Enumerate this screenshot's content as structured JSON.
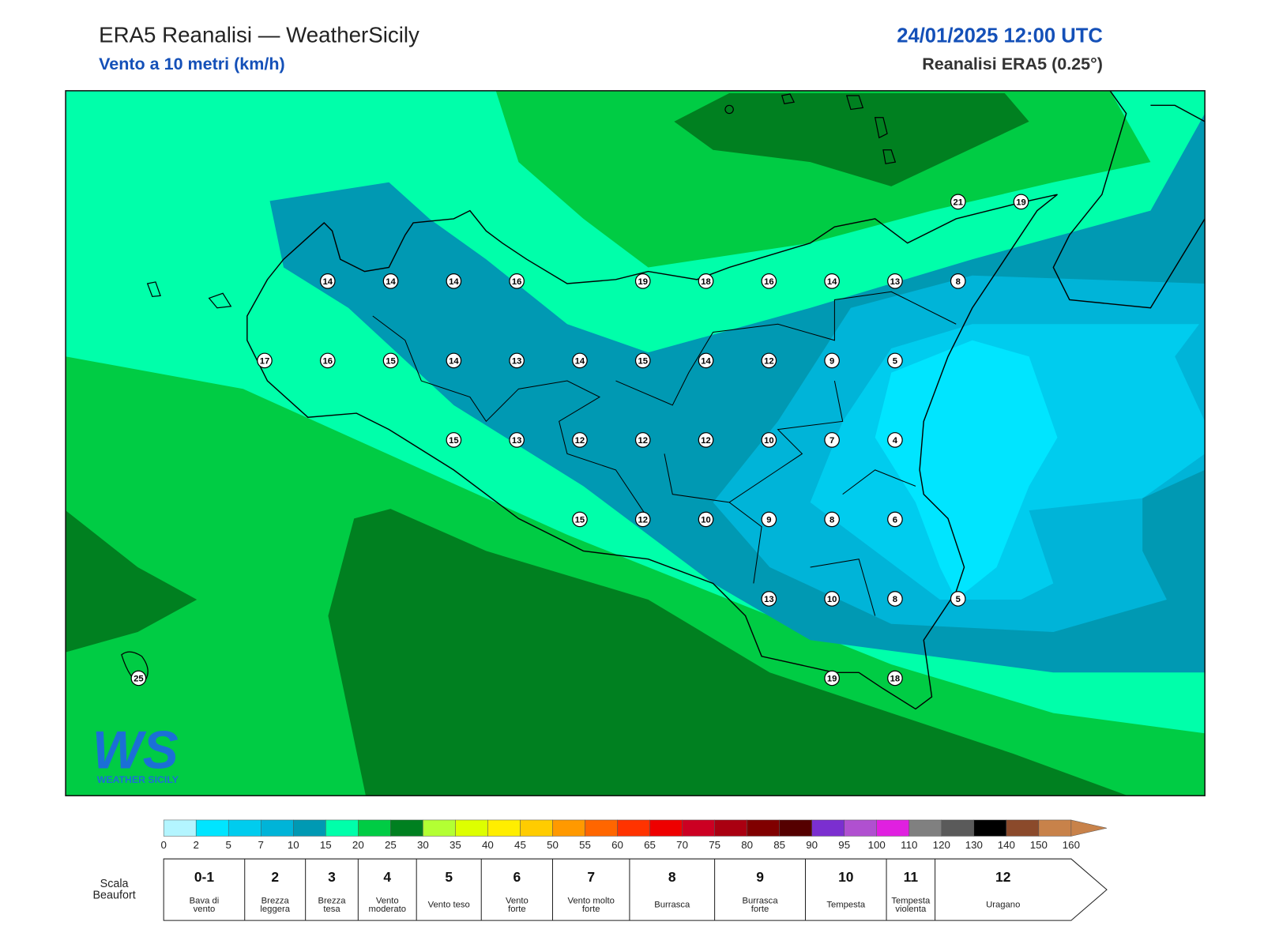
{
  "header": {
    "title": "ERA5 Reanalisi — WeatherSicily",
    "subtitle": "Vento a 10 metri (km/h)",
    "datetime": "24/01/2025 12:00 UTC",
    "source": "Reanalisi ERA5 (0.25°)"
  },
  "stations": [
    [
      null,
      null,
      null,
      null,
      null,
      null,
      null,
      null,
      null,
      null,
      null,
      null,
      null,
      21,
      19
    ],
    [
      null,
      null,
      null,
      14,
      14,
      14,
      16,
      null,
      19,
      18,
      16,
      14,
      13,
      8,
      null
    ],
    [
      null,
      null,
      17,
      16,
      15,
      14,
      13,
      14,
      15,
      14,
      12,
      9,
      5,
      null,
      null
    ],
    [
      null,
      null,
      null,
      null,
      null,
      15,
      13,
      12,
      12,
      12,
      10,
      7,
      4,
      null,
      null
    ],
    [
      null,
      null,
      null,
      null,
      null,
      null,
      null,
      15,
      12,
      10,
      9,
      8,
      6,
      null,
      null
    ],
    [
      null,
      null,
      null,
      null,
      null,
      null,
      null,
      null,
      null,
      null,
      13,
      10,
      8,
      5,
      null
    ],
    [
      25,
      null,
      null,
      null,
      null,
      null,
      null,
      null,
      null,
      null,
      null,
      19,
      18,
      null,
      null
    ]
  ],
  "logo": {
    "mark": "WS",
    "name": "WEATHER SICILY"
  },
  "colorbar": {
    "ticks": [
      0,
      2,
      5,
      7,
      10,
      15,
      20,
      25,
      30,
      35,
      40,
      45,
      50,
      55,
      60,
      65,
      70,
      75,
      80,
      85,
      90,
      95,
      100,
      110,
      120,
      130,
      140,
      150,
      160
    ],
    "colors": [
      "#b3f5ff",
      "#00e5ff",
      "#00ccee",
      "#00b4d8",
      "#0099b3",
      "#00ffaa",
      "#00cc44",
      "#008020",
      "#b3ff33",
      "#ddff00",
      "#ffee00",
      "#ffcc00",
      "#ff9900",
      "#ff6600",
      "#ff3300",
      "#ee0000",
      "#cc0022",
      "#aa0011",
      "#800000",
      "#550000",
      "#7b2fd0",
      "#b050d0",
      "#e020e0",
      "#808080",
      "#5a5a5a",
      "#000000",
      "#8b4a2b",
      "#c8824a"
    ]
  },
  "beaufort": {
    "label": [
      "Scala",
      "Beaufort"
    ],
    "levels": [
      {
        "force": "0-1",
        "desc": [
          "Bava di",
          "vento"
        ]
      },
      {
        "force": "2",
        "desc": [
          "Brezza",
          "leggera"
        ]
      },
      {
        "force": "3",
        "desc": [
          "Brezza",
          "tesa"
        ]
      },
      {
        "force": "4",
        "desc": [
          "Vento",
          "moderato"
        ]
      },
      {
        "force": "5",
        "desc": [
          "Vento teso"
        ]
      },
      {
        "force": "6",
        "desc": [
          "Vento",
          "forte"
        ]
      },
      {
        "force": "7",
        "desc": [
          "Vento molto",
          "forte"
        ]
      },
      {
        "force": "8",
        "desc": [
          "Burrasca"
        ]
      },
      {
        "force": "9",
        "desc": [
          "Burrasca",
          "forte"
        ]
      },
      {
        "force": "10",
        "desc": [
          "Tempesta"
        ]
      },
      {
        "force": "11",
        "desc": [
          "Tempesta",
          "violenta"
        ]
      },
      {
        "force": "12",
        "desc": [
          "Uragano"
        ]
      }
    ]
  }
}
